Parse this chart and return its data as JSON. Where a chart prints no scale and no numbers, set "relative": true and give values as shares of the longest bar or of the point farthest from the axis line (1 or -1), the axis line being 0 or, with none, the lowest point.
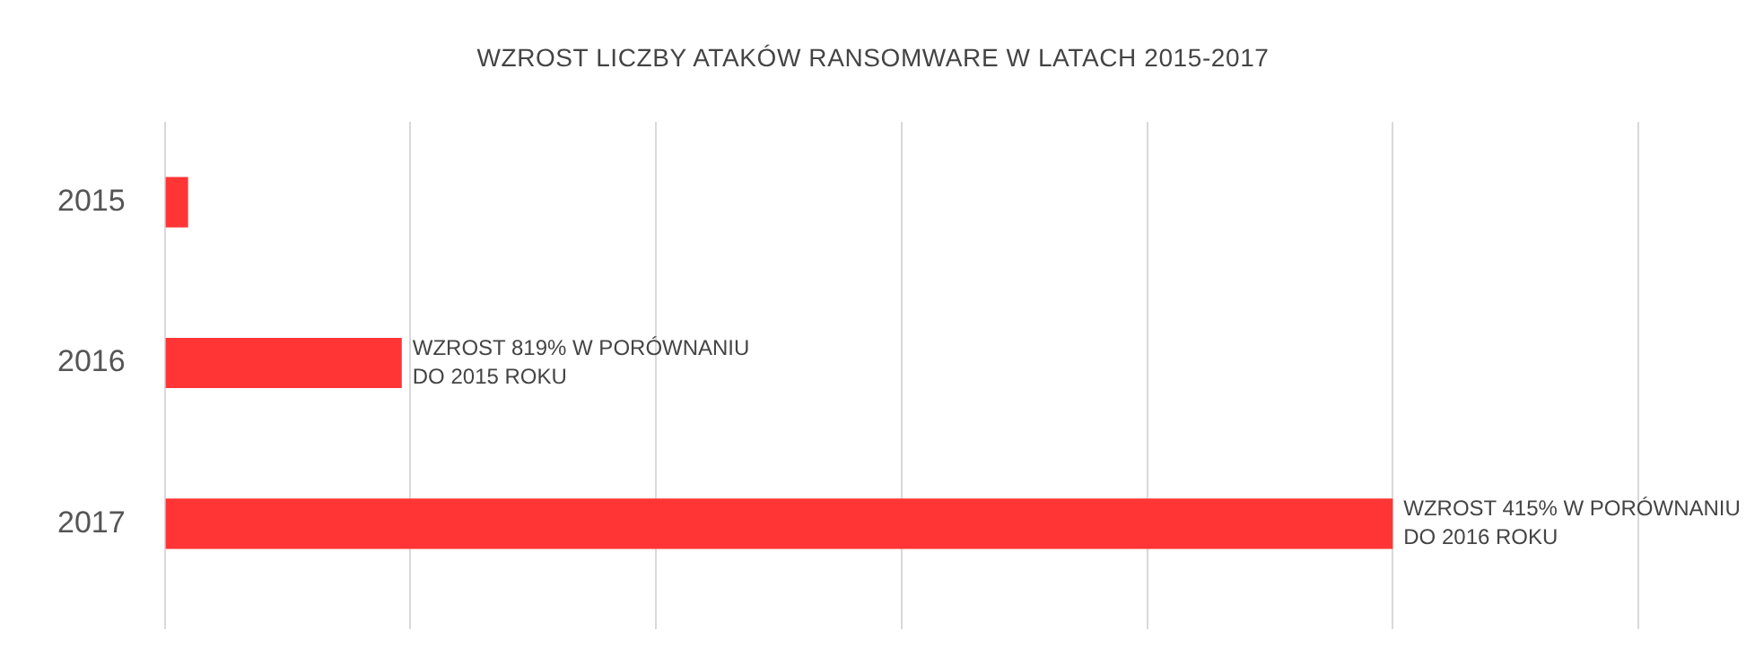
{
  "chart_data": {
    "type": "bar",
    "orientation": "horizontal",
    "relative": true,
    "title": "WZROST LICZBY ATAKÓW RANSOMWARE W LATACH 2015-2017",
    "categories": [
      "2015",
      "2016",
      "2017"
    ],
    "series": [
      {
        "color": "#ff3535",
        "values": [
          0.019,
          0.193,
          1
        ]
      }
    ],
    "grid": "x",
    "legend": false,
    "annotations": [
      {
        "text": "WZROST 819% W PORÓWNANIU DO 2015 ROKU",
        "x": 0.193,
        "y": "2016"
      },
      {
        "text": "WZROST 415% W PORÓWNANIU DO 2016 ROKU",
        "x": 1,
        "y": "2017"
      }
    ]
  }
}
